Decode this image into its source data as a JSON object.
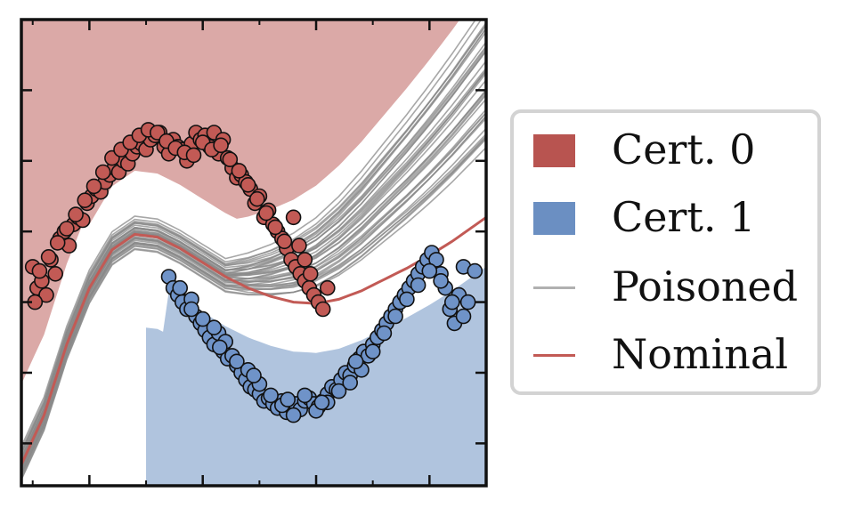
{
  "colors": {
    "cert0_fill": "#dba9a7",
    "cert1_fill": "#b0c4de",
    "class0_point": "#c25a55",
    "class1_point": "#6f93c8",
    "poisoned_line": "#8a8a8a",
    "nominal_line": "#c25a55"
  },
  "legend": {
    "placement": "right, outside plot",
    "items": [
      {
        "label": "Cert. 0",
        "kind": "patch",
        "color": "#b85450"
      },
      {
        "label": "Cert. 1",
        "kind": "patch",
        "color": "#6b8fc2"
      },
      {
        "label": "Poisoned",
        "kind": "line",
        "color": "#b0b0b0"
      },
      {
        "label": "Nominal",
        "kind": "line",
        "color": "#c25a55"
      }
    ]
  },
  "chart_data": {
    "type": "scatter",
    "title": "",
    "xlabel": "",
    "ylabel": "",
    "xlim": [
      -1.6,
      2.5
    ],
    "ylim": [
      -1.3,
      2.0
    ],
    "grid": false,
    "tick_labels_shown": false,
    "series": [
      {
        "name": "Nominal",
        "kind": "boundary_line",
        "x": [
          -1.6,
          -1.4,
          -1.2,
          -1.0,
          -0.8,
          -0.6,
          -0.4,
          -0.2,
          0.0,
          0.2,
          0.4,
          0.6,
          0.8,
          1.0,
          1.2,
          1.4,
          1.6,
          1.8,
          2.0,
          2.2,
          2.5
        ],
        "y": [
          -1.15,
          -0.8,
          -0.3,
          0.1,
          0.37,
          0.48,
          0.46,
          0.38,
          0.28,
          0.18,
          0.1,
          0.04,
          0.0,
          -0.01,
          0.02,
          0.08,
          0.16,
          0.24,
          0.33,
          0.43,
          0.6
        ]
      },
      {
        "name": "Poisoned",
        "kind": "boundary_line_bundle",
        "count": 40
      },
      {
        "name": "Cert. 0",
        "kind": "region"
      },
      {
        "name": "Cert. 1",
        "kind": "region"
      },
      {
        "kind": "class_points",
        "class": 0,
        "x": [
          -1.5,
          -1.46,
          -1.42,
          -1.38,
          -1.34,
          -1.3,
          -1.26,
          -1.22,
          -1.18,
          -1.14,
          -1.1,
          -1.06,
          -1.02,
          -0.98,
          -0.94,
          -0.9,
          -0.86,
          -0.82,
          -0.78,
          -0.74,
          -0.7,
          -0.66,
          -0.62,
          -0.58,
          -0.54,
          -0.5,
          -0.46,
          -0.42,
          -0.38,
          -0.34,
          -0.3,
          -0.26,
          -0.22,
          -0.18,
          -0.14,
          -0.1,
          -0.06,
          -0.02,
          0.02,
          0.06,
          0.1,
          0.14,
          0.18,
          0.22,
          0.26,
          0.3,
          0.34,
          0.38,
          0.42,
          0.46,
          0.5,
          0.54,
          0.58,
          0.62,
          0.66,
          0.7,
          0.74,
          0.78,
          0.82,
          0.86,
          0.9,
          0.94,
          0.98,
          1.02,
          1.06,
          1.1,
          0.9,
          0.95,
          0.85,
          0.8,
          -1.48,
          -1.44,
          -1.36,
          -1.28,
          -1.2,
          -1.12,
          -1.04,
          -0.96,
          -0.88,
          -0.8,
          -0.72,
          -0.64,
          -0.56,
          -0.48,
          -0.4,
          -0.32,
          -0.24,
          -0.16,
          -0.08,
          0.0,
          0.08,
          0.16,
          0.24,
          0.32,
          0.4,
          0.48,
          0.56,
          0.64,
          0.72
        ],
        "y": [
          0.25,
          0.1,
          0.15,
          0.05,
          0.3,
          0.2,
          0.45,
          0.5,
          0.4,
          0.55,
          0.6,
          0.58,
          0.7,
          0.75,
          0.8,
          0.78,
          0.85,
          0.9,
          0.95,
          0.92,
          1.0,
          0.98,
          1.05,
          1.1,
          1.12,
          1.08,
          1.15,
          1.18,
          1.2,
          1.1,
          1.05,
          1.15,
          1.1,
          1.08,
          1.0,
          1.12,
          1.2,
          1.15,
          1.18,
          1.1,
          1.2,
          1.05,
          1.15,
          1.02,
          0.95,
          0.88,
          0.9,
          0.85,
          0.8,
          0.7,
          0.75,
          0.6,
          0.65,
          0.55,
          0.5,
          0.45,
          0.38,
          0.3,
          0.25,
          0.2,
          0.15,
          0.1,
          0.05,
          0.0,
          -0.05,
          0.1,
          0.3,
          0.2,
          0.4,
          0.6,
          0.0,
          0.22,
          0.32,
          0.42,
          0.52,
          0.62,
          0.72,
          0.82,
          0.92,
          1.02,
          1.08,
          1.13,
          1.18,
          1.22,
          1.2,
          1.14,
          1.09,
          1.06,
          1.04,
          1.13,
          1.08,
          1.11,
          1.01,
          0.93,
          0.83,
          0.73,
          0.63,
          0.53,
          0.43
        ]
      },
      {
        "kind": "class_points",
        "class": 1,
        "x": [
          -0.3,
          -0.26,
          -0.22,
          -0.18,
          -0.14,
          -0.1,
          -0.06,
          -0.02,
          0.02,
          0.06,
          0.1,
          0.14,
          0.18,
          0.22,
          0.26,
          0.3,
          0.34,
          0.38,
          0.42,
          0.46,
          0.5,
          0.54,
          0.58,
          0.62,
          0.66,
          0.7,
          0.74,
          0.78,
          0.82,
          0.86,
          0.9,
          0.94,
          0.98,
          1.02,
          1.06,
          1.1,
          1.14,
          1.18,
          1.22,
          1.26,
          1.3,
          1.34,
          1.38,
          1.42,
          1.46,
          1.5,
          1.54,
          1.58,
          1.62,
          1.66,
          1.7,
          1.74,
          1.78,
          1.82,
          1.86,
          1.9,
          1.94,
          1.98,
          2.02,
          2.06,
          2.1,
          2.14,
          2.18,
          2.22,
          2.26,
          2.3,
          2.34,
          2.4,
          -0.2,
          -0.1,
          0.0,
          0.1,
          0.2,
          0.3,
          0.4,
          0.5,
          0.6,
          0.7,
          0.8,
          0.9,
          1.0,
          1.1,
          1.2,
          1.3,
          1.4,
          1.5,
          1.6,
          1.7,
          1.8,
          1.9,
          2.0,
          2.1,
          2.2,
          2.3,
          0.15,
          0.45,
          0.75,
          1.05,
          1.35
        ],
        "y": [
          0.18,
          0.1,
          0.05,
          0.0,
          -0.05,
          0.02,
          -0.1,
          -0.15,
          -0.2,
          -0.25,
          -0.3,
          -0.22,
          -0.35,
          -0.4,
          -0.38,
          -0.45,
          -0.5,
          -0.55,
          -0.6,
          -0.62,
          -0.65,
          -0.7,
          -0.68,
          -0.72,
          -0.75,
          -0.7,
          -0.78,
          -0.74,
          -0.72,
          -0.76,
          -0.7,
          -0.68,
          -0.72,
          -0.74,
          -0.7,
          -0.65,
          -0.6,
          -0.62,
          -0.55,
          -0.5,
          -0.52,
          -0.45,
          -0.4,
          -0.35,
          -0.38,
          -0.3,
          -0.25,
          -0.2,
          -0.15,
          -0.1,
          -0.05,
          0.0,
          0.05,
          0.1,
          0.15,
          0.2,
          0.25,
          0.3,
          0.35,
          0.3,
          0.2,
          0.1,
          -0.05,
          -0.15,
          0.05,
          0.25,
          0.0,
          0.22,
          0.1,
          -0.05,
          -0.12,
          -0.18,
          -0.28,
          -0.42,
          -0.48,
          -0.58,
          -0.66,
          -0.73,
          -0.8,
          -0.66,
          -0.77,
          -0.71,
          -0.63,
          -0.57,
          -0.48,
          -0.35,
          -0.22,
          -0.1,
          0.02,
          0.12,
          0.22,
          0.15,
          0.0,
          -0.1,
          -0.32,
          -0.52,
          -0.69,
          -0.71,
          -0.42
        ]
      }
    ]
  }
}
